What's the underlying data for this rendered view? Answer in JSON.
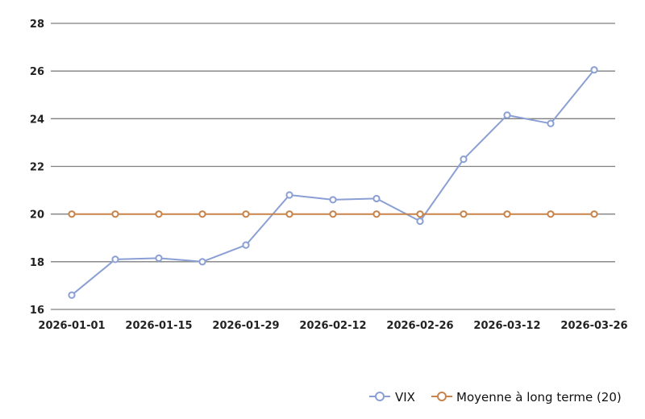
{
  "chart_data": {
    "type": "line",
    "title": "",
    "xlabel": "",
    "ylabel": "",
    "x": [
      "2026-01-01",
      "2026-01-08",
      "2026-01-15",
      "2026-01-22",
      "2026-01-29",
      "2026-02-05",
      "2026-02-12",
      "2026-02-19",
      "2026-02-26",
      "2026-03-05",
      "2026-03-12",
      "2026-03-19",
      "2026-03-26"
    ],
    "x_tick_labels": [
      "2026-01-01",
      "2026-01-15",
      "2026-01-29",
      "2026-02-12",
      "2026-02-26",
      "2026-03-12",
      "2026-03-26"
    ],
    "y_ticks": [
      16,
      18,
      20,
      22,
      24,
      26,
      28
    ],
    "ylim": [
      16,
      28
    ],
    "grid": "horizontal",
    "legend_position": "bottom-right",
    "series": [
      {
        "name": "VIX",
        "color": "#8a9fd4",
        "values": [
          16.6,
          18.1,
          18.15,
          18.0,
          18.7,
          20.8,
          20.6,
          20.65,
          19.7,
          22.3,
          24.15,
          23.8,
          26.05
        ]
      },
      {
        "name": "Moyenne à long terme (20)",
        "color": "#c8834a",
        "values": [
          20,
          20,
          20,
          20,
          20,
          20,
          20,
          20,
          20,
          20,
          20,
          20,
          20
        ]
      }
    ]
  }
}
